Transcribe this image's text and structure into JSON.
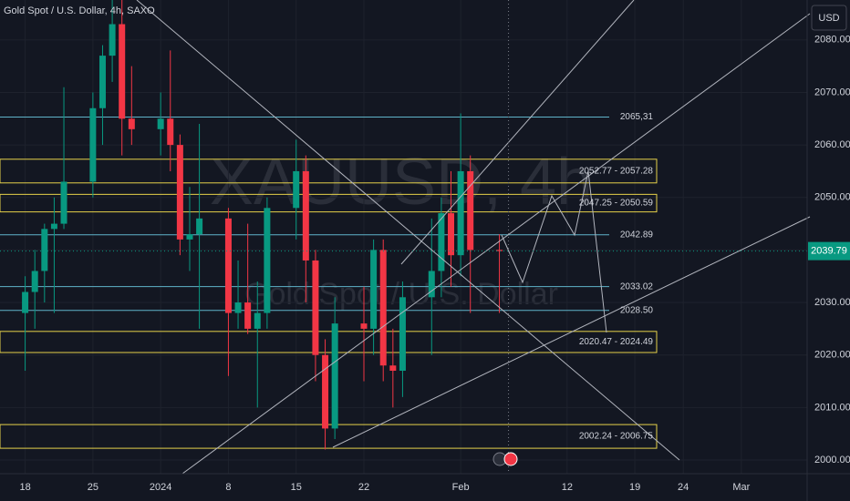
{
  "chart_data": {
    "type": "candlestick",
    "title": "Gold Spot / U.S. Dollar, 4h, SAXO",
    "watermark": "XAUUSD, 4h",
    "watermark_subtitle": "Gold Spot / U.S. Dollar",
    "currency": "USD",
    "up_color": "#089981",
    "down_color": "#f23645",
    "x": [
      0,
      1,
      2,
      3,
      4,
      7,
      8,
      9,
      10,
      11,
      14,
      15,
      16,
      17,
      18,
      21,
      22,
      23,
      24,
      25,
      28,
      29,
      30,
      31,
      32,
      35,
      36,
      37,
      38,
      39,
      42,
      43,
      44,
      45,
      46,
      49
    ],
    "open": [
      2028,
      2032,
      2036,
      2044,
      2045,
      2053,
      2067,
      2077,
      2083,
      2065,
      2063,
      2065,
      2060,
      2042,
      2043,
      2046,
      2028,
      2030,
      2025,
      2028,
      2048,
      2055,
      2038,
      2020,
      2006,
      2026,
      2025,
      2040,
      2018,
      2017,
      2031,
      2036,
      2047,
      2039,
      2055,
      2040
    ],
    "high": [
      2035,
      2040,
      2045,
      2050,
      2071,
      2070,
      2079,
      2088,
      2088,
      2075,
      2070,
      2078,
      2062,
      2052,
      2064,
      2048,
      2038,
      2045,
      2034,
      2050,
      2061,
      2058,
      2040,
      2023,
      2031,
      2033,
      2042,
      2042,
      2025,
      2034,
      2046,
      2050,
      2055,
      2066,
      2058,
      2043
    ],
    "low": [
      2017,
      2025,
      2030,
      2028,
      2044,
      2050,
      2060,
      2072,
      2058,
      2060,
      2058,
      2055,
      2039,
      2036,
      2025,
      2016,
      2025,
      2024,
      2010,
      2025,
      2042,
      2030,
      2015,
      2002,
      2004,
      2015,
      2020,
      2015,
      2010,
      2012,
      2020,
      2031,
      2033,
      2035,
      2028,
      2028
    ],
    "close": [
      2032,
      2036,
      2044,
      2045,
      2053,
      2067,
      2077,
      2083,
      2065,
      2063,
      2065,
      2060,
      2042,
      2043,
      2046,
      2028,
      2030,
      2025,
      2028,
      2048,
      2055,
      2038,
      2020,
      2006,
      2026,
      2025,
      2040,
      2018,
      2017,
      2031,
      2036,
      2047,
      2039,
      2055,
      2040,
      2039.79
    ],
    "last_price": 2039.79,
    "xlim": [
      -2.6,
      80.8
    ],
    "xticks": [
      {
        "value": 0,
        "label": "18"
      },
      {
        "value": 7,
        "label": "25"
      },
      {
        "value": 14,
        "label": "2024"
      },
      {
        "value": 21,
        "label": "8"
      },
      {
        "value": 28,
        "label": "15"
      },
      {
        "value": 35,
        "label": "22"
      },
      {
        "value": 45,
        "label": "Feb"
      },
      {
        "value": 56,
        "label": "12"
      },
      {
        "value": 63,
        "label": "19"
      },
      {
        "value": 68,
        "label": "24"
      },
      {
        "value": 74,
        "label": "Mar"
      }
    ],
    "ylim": [
      1997.4,
      2087.6
    ],
    "yticks": [
      {
        "value": 2000,
        "label": "2000.00"
      },
      {
        "value": 2010,
        "label": "2010.00"
      },
      {
        "value": 2020,
        "label": "2020.00"
      },
      {
        "value": 2030,
        "label": "2030.00"
      },
      {
        "value": 2040,
        "label": "2040.00"
      },
      {
        "value": 2050,
        "label": "2050.00"
      },
      {
        "value": 2060,
        "label": "2060.00"
      },
      {
        "value": 2070,
        "label": "2070.00"
      },
      {
        "value": 2080,
        "label": "2080.00"
      }
    ],
    "levels": [
      {
        "value": 2065.31,
        "label": "2065,31"
      },
      2042.89,
      2033.02,
      {
        "value": 2028.5,
        "label": "2028.50"
      }
    ],
    "level_color": "#5fb3c9",
    "zones": [
      {
        "low": 2052.77,
        "high": 2057.28,
        "label": "2052.77 - 2057.28"
      },
      {
        "low": 2047.25,
        "high": 2050.59,
        "label": "2047.25 - 2050.59"
      },
      {
        "low": 2020.47,
        "high": 2024.49,
        "label": "2020.47 - 2024.49"
      },
      {
        "low": 2002.24,
        "high": 2006.75,
        "label": "2002.24 - 2006.75"
      }
    ],
    "zone_color": "#e6d24a"
  }
}
